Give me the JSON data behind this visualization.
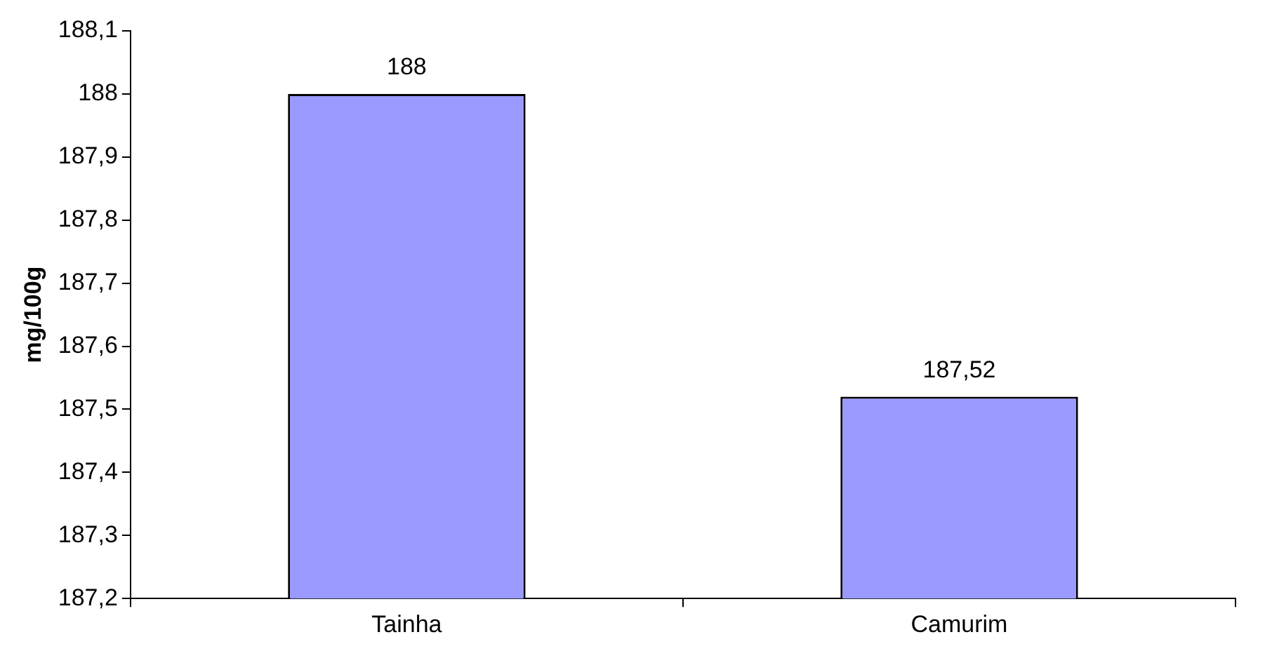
{
  "chart_data": {
    "type": "bar",
    "ylabel": "mg/100g",
    "categories": [
      "Tainha",
      "Camurim"
    ],
    "values": [
      188,
      187.52
    ],
    "color": "#9999ff",
    "value_labels": [
      "188",
      "187,52"
    ],
    "ylim": [
      187.2,
      188.1
    ],
    "yticks": [
      {
        "value": 187.2,
        "label": "187,2"
      },
      {
        "value": 187.3,
        "label": "187,3"
      },
      {
        "value": 187.4,
        "label": "187,4"
      },
      {
        "value": 187.5,
        "label": "187,5"
      },
      {
        "value": 187.6,
        "label": "187,6"
      },
      {
        "value": 187.7,
        "label": "187,7"
      },
      {
        "value": 187.8,
        "label": "187,8"
      },
      {
        "value": 187.9,
        "label": "187,9"
      },
      {
        "value": 188,
        "label": "188"
      },
      {
        "value": 188.1,
        "label": "188,1"
      }
    ],
    "grid": false,
    "legend": false
  }
}
